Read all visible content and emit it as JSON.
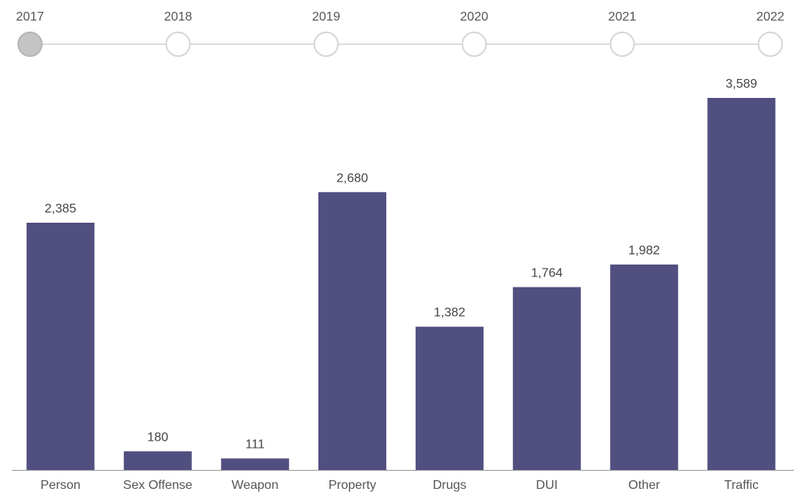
{
  "timeline": {
    "years": [
      "2017",
      "2018",
      "2019",
      "2020",
      "2021",
      "2022"
    ],
    "selected_index": 0,
    "colors": {
      "track": "#dcdcdc",
      "stop_fill": "#ffffff",
      "stop_border": "#d6d6d6",
      "selected_fill": "#c4c4c4",
      "selected_border": "#b5b5b5"
    }
  },
  "chart_data": {
    "type": "bar",
    "categories": [
      "Person",
      "Sex Offense",
      "Weapon",
      "Property",
      "Drugs",
      "DUI",
      "Other",
      "Traffic"
    ],
    "values": [
      2385,
      180,
      111,
      2680,
      1382,
      1764,
      1982,
      3589
    ],
    "value_labels": [
      "2,385",
      "180",
      "111",
      "2,680",
      "1,382",
      "1,764",
      "1,982",
      "3,589"
    ],
    "title": "",
    "xlabel": "",
    "ylabel": "",
    "ylim": [
      0,
      3589
    ],
    "grid": false,
    "bar_color": "#514f80",
    "axis_color": "#999999"
  }
}
